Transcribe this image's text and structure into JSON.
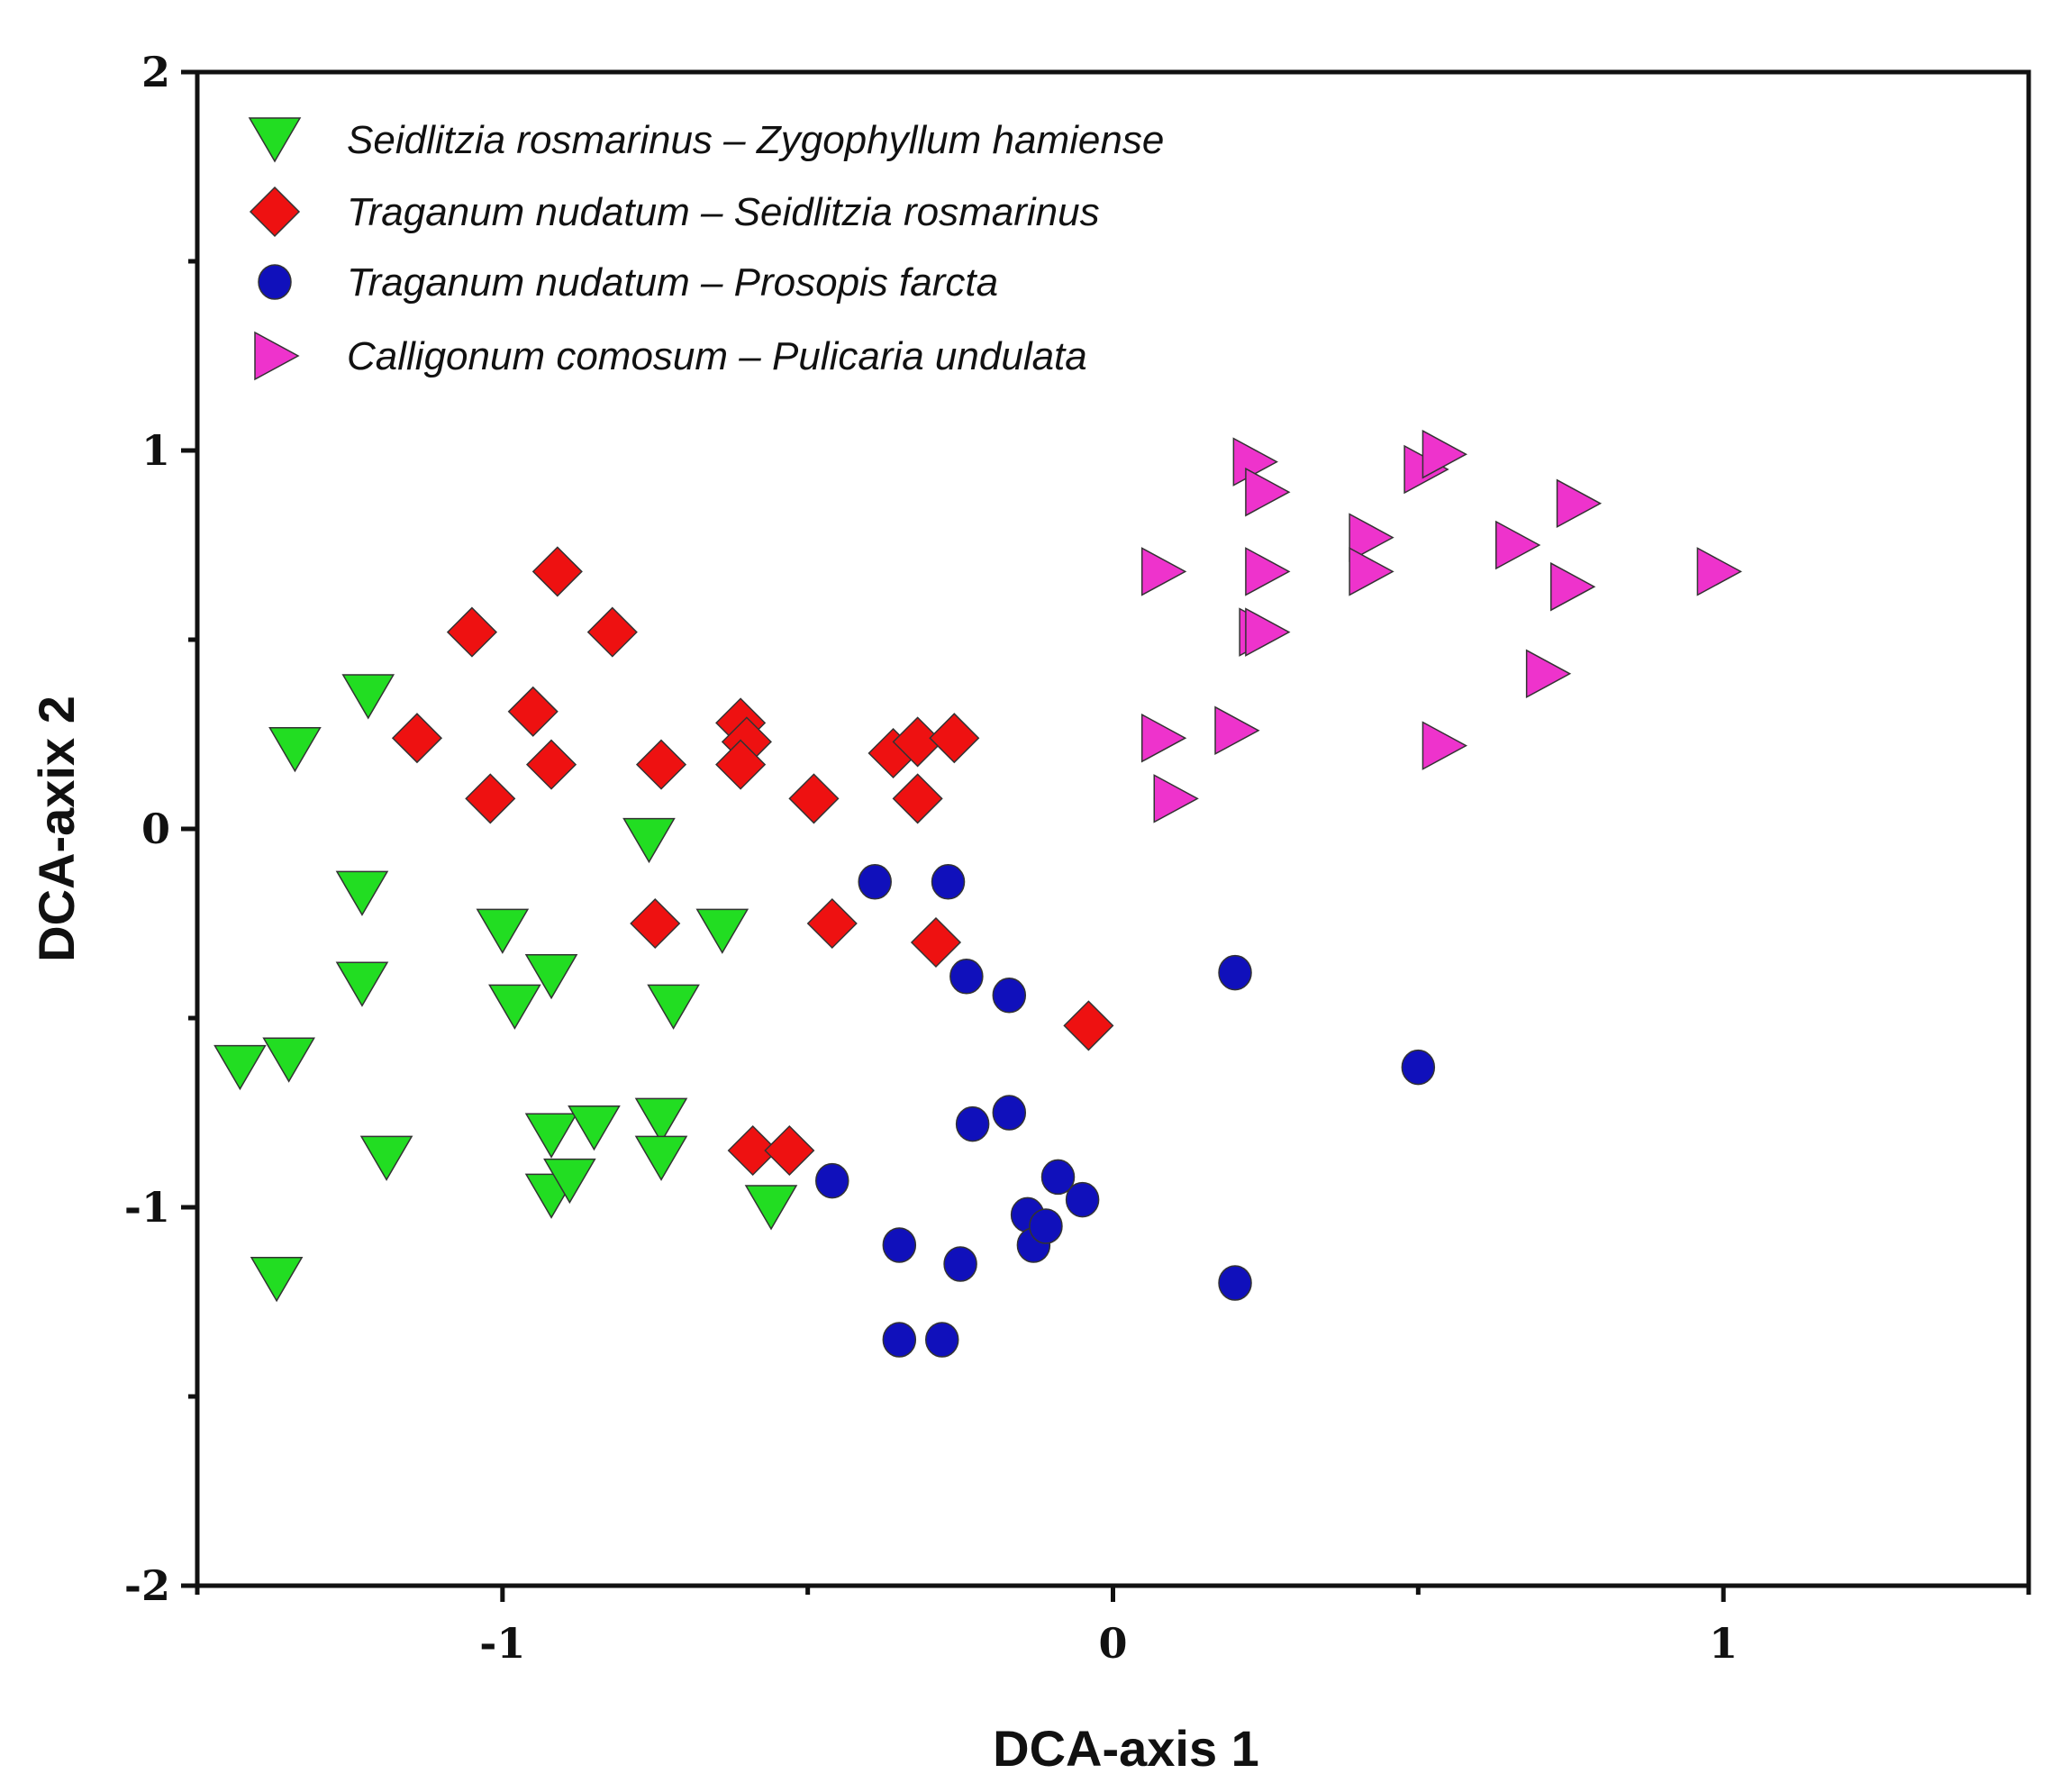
{
  "chart_data": {
    "type": "scatter",
    "title": "",
    "xlabel": "DCA-axis 1",
    "ylabel": "DCA-axix 2",
    "xlim": [
      -1.5,
      1.5
    ],
    "ylim": [
      -2,
      2
    ],
    "x_ticks": [
      -1,
      0,
      1
    ],
    "x_tick_labels": [
      "-1",
      "0",
      "1"
    ],
    "y_ticks": [
      -2,
      -1,
      0,
      1,
      2
    ],
    "y_tick_labels": [
      "-2",
      "-1",
      "0",
      "1",
      "2"
    ],
    "grid": false,
    "legend_position": "top-left",
    "series": [
      {
        "name": "Seidlitzia rosmarinus – Zygophyllum hamiense",
        "marker": "triangle-down",
        "color": "#22dd22",
        "points": [
          [
            -1.43,
            -0.63
          ],
          [
            -1.35,
            -0.61
          ],
          [
            -1.37,
            -1.19
          ],
          [
            -1.34,
            0.21
          ],
          [
            -1.22,
            0.35
          ],
          [
            -1.23,
            -0.17
          ],
          [
            -1.23,
            -0.41
          ],
          [
            -1.19,
            -0.87
          ],
          [
            -1.0,
            -0.27
          ],
          [
            -0.98,
            -0.47
          ],
          [
            -0.92,
            -0.39
          ],
          [
            -0.92,
            -0.81
          ],
          [
            -0.92,
            -0.97
          ],
          [
            -0.89,
            -0.93
          ],
          [
            -0.85,
            -0.79
          ],
          [
            -0.76,
            -0.03
          ],
          [
            -0.74,
            -0.77
          ],
          [
            -0.74,
            -0.87
          ],
          [
            -0.72,
            -0.47
          ],
          [
            -0.64,
            -0.27
          ],
          [
            -0.56,
            -1.0
          ]
        ]
      },
      {
        "name": "Traganum nudatum –  Seidlitzia rosmarinus",
        "marker": "diamond",
        "color": "#ee1111",
        "points": [
          [
            -1.14,
            0.24
          ],
          [
            -1.05,
            0.52
          ],
          [
            -1.02,
            0.08
          ],
          [
            -0.95,
            0.31
          ],
          [
            -0.92,
            0.17
          ],
          [
            -0.91,
            0.68
          ],
          [
            -0.82,
            0.52
          ],
          [
            -0.74,
            0.17
          ],
          [
            -0.75,
            -0.25
          ],
          [
            -0.61,
            0.28
          ],
          [
            -0.6,
            0.23
          ],
          [
            -0.61,
            0.17
          ],
          [
            -0.59,
            -0.85
          ],
          [
            -0.53,
            -0.85
          ],
          [
            -0.49,
            0.08
          ],
          [
            -0.46,
            -0.25
          ],
          [
            -0.36,
            0.2
          ],
          [
            -0.32,
            0.23
          ],
          [
            -0.32,
            0.08
          ],
          [
            -0.26,
            0.24
          ],
          [
            -0.29,
            -0.3
          ],
          [
            -0.04,
            -0.52
          ]
        ]
      },
      {
        "name": "Traganum nudatum – Prosopis farcta",
        "marker": "circle",
        "color": "#1010bb",
        "points": [
          [
            -0.46,
            -0.93
          ],
          [
            -0.39,
            -0.14
          ],
          [
            -0.35,
            -1.1
          ],
          [
            -0.35,
            -1.35
          ],
          [
            -0.28,
            -1.35
          ],
          [
            -0.27,
            -0.14
          ],
          [
            -0.25,
            -1.15
          ],
          [
            -0.24,
            -0.39
          ],
          [
            -0.23,
            -0.78
          ],
          [
            -0.17,
            -0.44
          ],
          [
            -0.17,
            -0.75
          ],
          [
            -0.14,
            -1.02
          ],
          [
            -0.13,
            -1.1
          ],
          [
            -0.11,
            -1.05
          ],
          [
            -0.09,
            -0.92
          ],
          [
            -0.05,
            -0.98
          ],
          [
            0.2,
            -0.38
          ],
          [
            0.2,
            -1.2
          ],
          [
            0.5,
            -0.63
          ]
        ]
      },
      {
        "name": "Calligonum comosum – Pulicaria undulata",
        "marker": "triangle-right",
        "color": "#ee33cc",
        "points": [
          [
            0.08,
            0.68
          ],
          [
            0.08,
            0.24
          ],
          [
            0.1,
            0.08
          ],
          [
            0.2,
            0.26
          ],
          [
            0.23,
            0.97
          ],
          [
            0.25,
            0.89
          ],
          [
            0.25,
            0.68
          ],
          [
            0.24,
            0.52
          ],
          [
            0.25,
            0.52
          ],
          [
            0.42,
            0.77
          ],
          [
            0.42,
            0.68
          ],
          [
            0.51,
            0.95
          ],
          [
            0.54,
            0.99
          ],
          [
            0.54,
            0.22
          ],
          [
            0.66,
            0.75
          ],
          [
            0.71,
            0.41
          ],
          [
            0.75,
            0.64
          ],
          [
            0.76,
            0.86
          ],
          [
            0.99,
            0.68
          ]
        ]
      }
    ]
  }
}
